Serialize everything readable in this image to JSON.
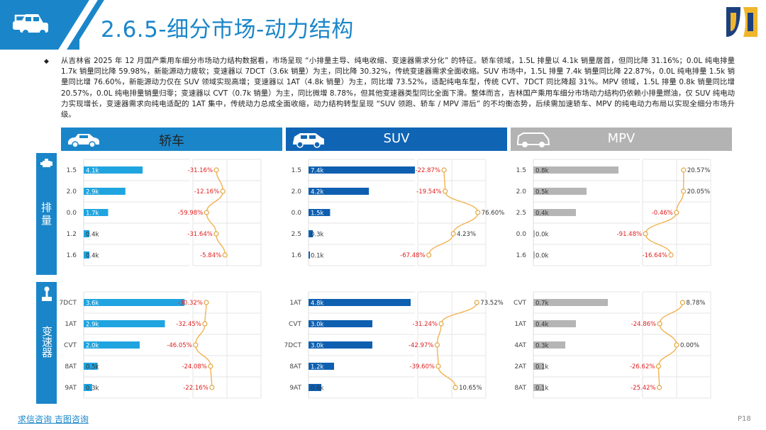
{
  "header": {
    "title": "2.6.5-细分市场-动力结构"
  },
  "intro": "从吉林省 2025 年 12 月国产乘用车细分市场动力结构数据看，市场呈现 “小排量主导、纯电收缩、变速器需求分化” 的特征。轿车领域，1.5L 排量以 4.1k 销量居首，但同比降 31.16%；0.0L 纯电排量 1.7k 销量同比降 59.98%，新能源动力疲软；变速器以 7DCT（3.6k 销量）为主，同比降 30.32%，传统变速器需求全面收缩。SUV 市场中，1.5L 排量 7.4k 销量同比降 22.87%，0.0L 纯电排量 1.5k 销量同比增 76.60%，新能源动力仅在 SUV 领域实现高增；变速器以 1AT（4.8k 销量）为主，同比增 73.52%，适配纯电车型，传统 CVT、7DCT 同比降超 31%。MPV 领域，1.5L 排量 0.8k 销量同比增 20.57%，0.0L 纯电排量销量归零；变速器以 CVT（0.7k 销量）为主，同比微增 8.78%，但其他变速器类型同比全面下滑。整体而言，吉林国产乘用车细分市场动力结构仍依赖小排量燃油，仅 SUV 纯电动力实现增长，变速器需求向纯电适配的 1AT 集中，传统动力总成全面收缩，动力结构转型呈现 “SUV 领跑、轿车 / MPV 滞后” 的不均衡态势，后续需加速轿车、MPV 的纯电动力布局以实现全细分市场升级。",
  "sections": [
    {
      "label": "排量"
    },
    {
      "label": "变速器"
    }
  ],
  "columns": [
    {
      "label": "轿车",
      "color": "#1a86c9",
      "text": "#222",
      "icon": "sedan-icon"
    },
    {
      "label": "SUV",
      "color": "#0f64b4",
      "text": "#fff",
      "icon": "suv-icon"
    },
    {
      "label": "MPV",
      "color": "#b3b3b3",
      "text": "#fff",
      "icon": "mpv-icon"
    }
  ],
  "colors": {
    "sedan_bar": "#1fa4e0",
    "suv_bar": "#0e5fb0",
    "mpv_bar": "#b5b5b5",
    "line": "#f2b253",
    "negative": "#e01e1e",
    "positive": "#333333",
    "accent": "#1a86c9"
  },
  "chart_data": [
    {
      "type": "bar",
      "segment": "轿车",
      "group": "排量",
      "categories": [
        "1.5",
        "2.0",
        "0.0",
        "1.2",
        "1.6"
      ],
      "values": [
        4.1,
        2.9,
        1.7,
        0.4,
        0.4
      ],
      "value_labels": [
        "4.1k",
        "2.9k",
        "1.7k",
        "0.4k",
        "0.4k"
      ],
      "growth": [
        -31.16,
        -12.16,
        -59.98,
        -31.64,
        -5.84
      ],
      "growth_labels": [
        "-31.16%",
        "-12.16%",
        "-59.98%",
        "-31.64%",
        "-5.84%"
      ],
      "bar_max": 7.4,
      "growth_range": [
        -100,
        100
      ]
    },
    {
      "type": "bar",
      "segment": "SUV",
      "group": "排量",
      "categories": [
        "1.5",
        "2.0",
        "0.0",
        "2.5",
        "1.6"
      ],
      "values": [
        7.4,
        4.2,
        1.5,
        0.3,
        0.1
      ],
      "value_labels": [
        "7.4k",
        "4.2k",
        "1.5k",
        "0.3k",
        "0.1k"
      ],
      "growth": [
        -22.87,
        -19.54,
        76.6,
        4.23,
        -67.48
      ],
      "growth_labels": [
        "-22.87%",
        "-19.54%",
        "76.60%",
        "4.23%",
        "-67.48%"
      ],
      "bar_max": 7.4,
      "growth_range": [
        -100,
        100
      ]
    },
    {
      "type": "bar",
      "segment": "MPV",
      "group": "排量",
      "categories": [
        "1.5",
        "2.0",
        "2.5",
        "0.0",
        "1.6"
      ],
      "values": [
        0.8,
        0.5,
        0.4,
        0.0,
        0.0
      ],
      "value_labels": [
        "0.8k",
        "0.5k",
        "0.4k",
        "0.0k",
        "0.0k"
      ],
      "growth": [
        20.57,
        20.05,
        -0.46,
        -91.48,
        -16.64
      ],
      "growth_labels": [
        "20.57%",
        "20.05%",
        "-0.46%",
        "-91.48%",
        "-16.64%"
      ],
      "bar_max": 1.0,
      "growth_range": [
        -100,
        100
      ]
    },
    {
      "type": "bar",
      "segment": "轿车",
      "group": "变速器",
      "categories": [
        "7DCT",
        "1AT",
        "CVT",
        "8AT",
        "9AT"
      ],
      "values": [
        3.6,
        2.9,
        2.0,
        0.5,
        0.3
      ],
      "value_labels": [
        "3.6k",
        "2.9k",
        "2.0k",
        "0.5k",
        "0.3k"
      ],
      "growth": [
        -30.32,
        -32.45,
        -46.05,
        -24.08,
        -22.16
      ],
      "growth_labels": [
        "-30.32%",
        "-32.45%",
        "-46.05%",
        "-24.08%",
        "-22.16%"
      ],
      "bar_max": 3.8,
      "growth_range": [
        -50,
        50
      ]
    },
    {
      "type": "bar",
      "segment": "SUV",
      "group": "变速器",
      "categories": [
        "1AT",
        "CVT",
        "7DCT",
        "8AT",
        "9AT"
      ],
      "values": [
        4.8,
        3.0,
        3.0,
        1.2,
        0.6
      ],
      "value_labels": [
        "4.8k",
        "3.0k",
        "3.0k",
        "1.2k",
        "0.6k"
      ],
      "growth": [
        73.52,
        -31.24,
        -42.97,
        -39.6,
        10.65
      ],
      "growth_labels": [
        "73.52%",
        "-31.24%",
        "-42.97%",
        "-39.60%",
        "10.65%"
      ],
      "bar_max": 5.0,
      "growth_range": [
        -100,
        100
      ]
    },
    {
      "type": "bar",
      "segment": "MPV",
      "group": "变速器",
      "categories": [
        "CVT",
        "1AT",
        "4AT",
        "2AT",
        "8AT"
      ],
      "values": [
        0.7,
        0.4,
        0.3,
        0.1,
        0.1
      ],
      "value_labels": [
        "0.7k",
        "0.4k",
        "0.3k",
        "0.1k",
        "0.1k"
      ],
      "growth": [
        8.78,
        -24.86,
        0.0,
        -26.62,
        -25.42
      ],
      "growth_labels": [
        "8.78%",
        "-24.86%",
        "0.00%",
        "-26.62%",
        "-25.42%"
      ],
      "bar_max": 1.0,
      "growth_range": [
        -50,
        50
      ]
    }
  ],
  "footer": {
    "link": "求信咨询 吉图咨询",
    "page": "P18"
  }
}
